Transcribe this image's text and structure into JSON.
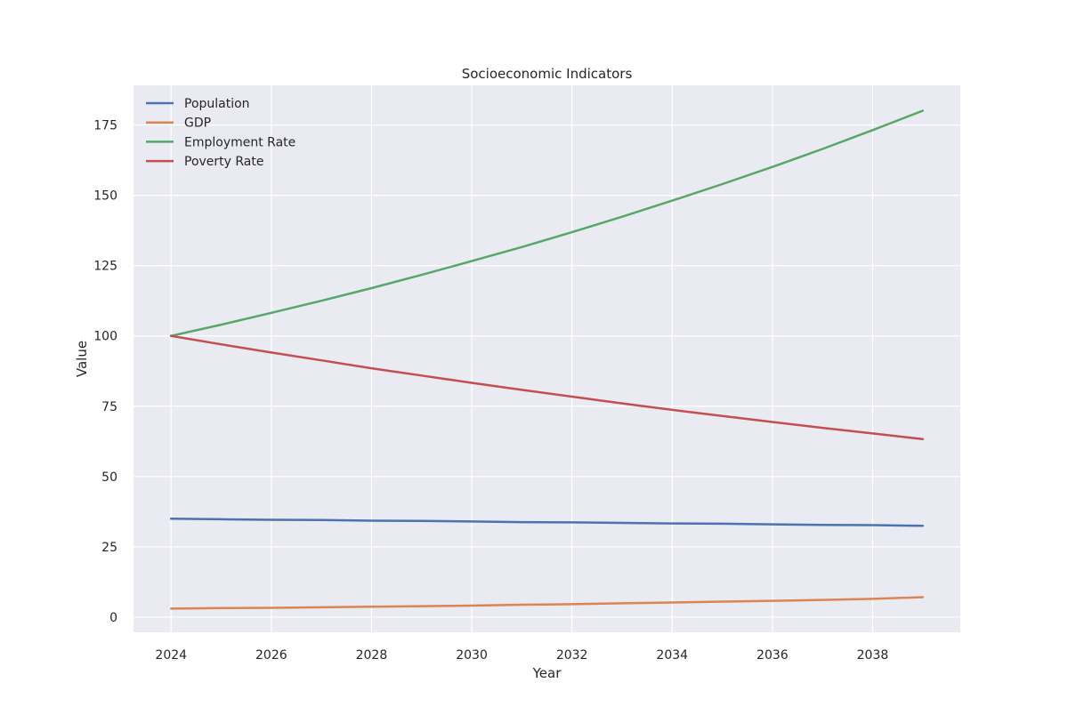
{
  "chart_data": {
    "type": "line",
    "title": "Socioeconomic Indicators",
    "xlabel": "Year",
    "ylabel": "Value",
    "x": [
      2024,
      2025,
      2026,
      2027,
      2028,
      2029,
      2030,
      2031,
      2032,
      2033,
      2034,
      2035,
      2036,
      2037,
      2038,
      2039
    ],
    "xlim": [
      2023.25,
      2039.75
    ],
    "ylim": [
      -5.4,
      189.1
    ],
    "xticks": [
      "2024",
      "2026",
      "2028",
      "2030",
      "2032",
      "2034",
      "2036",
      "2038"
    ],
    "yticks": [
      "0",
      "25",
      "50",
      "75",
      "100",
      "125",
      "150",
      "175"
    ],
    "grid": true,
    "legend_position": "upper-left",
    "background_color": "#eaeaf2",
    "grid_color": "#ffffff",
    "series": [
      {
        "name": "Population",
        "color": "#4c72b0",
        "values": [
          35.0,
          34.8,
          34.6,
          34.5,
          34.3,
          34.2,
          34.0,
          33.8,
          33.7,
          33.5,
          33.3,
          33.2,
          33.0,
          32.8,
          32.7,
          32.5
        ]
      },
      {
        "name": "GDP",
        "color": "#dd8452",
        "values": [
          3.0,
          3.2,
          3.3,
          3.5,
          3.7,
          3.9,
          4.1,
          4.4,
          4.6,
          4.9,
          5.2,
          5.5,
          5.8,
          6.1,
          6.5,
          7.1
        ]
      },
      {
        "name": "Employment Rate",
        "color": "#55a868",
        "values": [
          100.0,
          104.0,
          108.2,
          112.5,
          117.0,
          121.7,
          126.6,
          131.6,
          136.9,
          142.4,
          148.1,
          154.0,
          160.1,
          166.5,
          173.2,
          180.1
        ]
      },
      {
        "name": "Poverty Rate",
        "color": "#c44e52",
        "values": [
          100.0,
          97.0,
          94.1,
          91.3,
          88.5,
          85.9,
          83.3,
          80.8,
          78.4,
          76.0,
          73.7,
          71.5,
          69.4,
          67.3,
          65.3,
          63.3
        ]
      }
    ]
  }
}
